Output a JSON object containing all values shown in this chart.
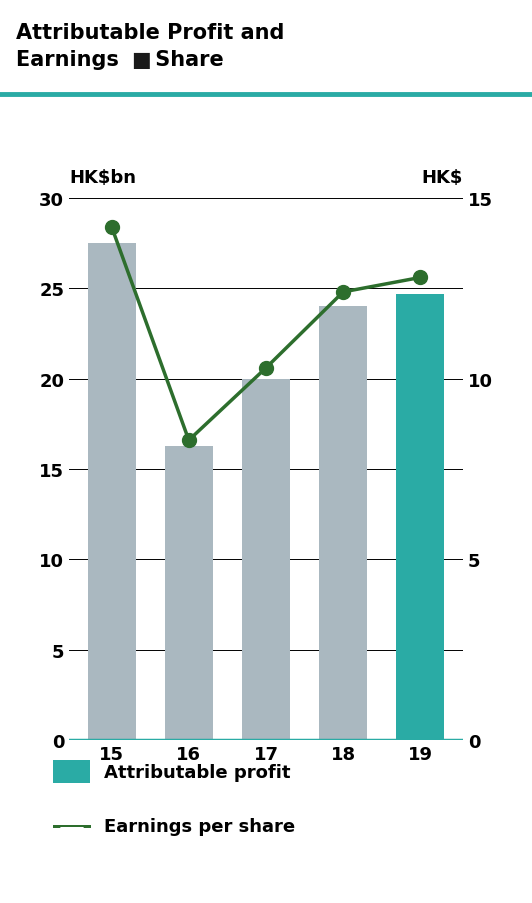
{
  "title_line1": "Attributable Profit and",
  "title_line2_part1": "Earnings ",
  "title_line2_square": "■",
  "title_line2_part2": " Share",
  "teal_color": "#2aaba5",
  "square_color": "#1a1a1a",
  "categories": [
    "15",
    "16",
    "17",
    "18",
    "19"
  ],
  "bar_values": [
    27.5,
    16.3,
    20.0,
    24.0,
    24.7
  ],
  "bar_colors": [
    "#aab8c0",
    "#aab8c0",
    "#aab8c0",
    "#aab8c0",
    "#2aaba5"
  ],
  "eps_values": [
    14.2,
    8.3,
    10.3,
    12.4,
    12.8
  ],
  "eps_color": "#2d6e2d",
  "left_ylim": [
    0,
    30
  ],
  "right_ylim": [
    0,
    15
  ],
  "left_yticks": [
    0,
    5,
    10,
    15,
    20,
    25,
    30
  ],
  "right_yticks": [
    0,
    5,
    10,
    15
  ],
  "left_ylabel": "HK$bn",
  "right_ylabel": "HK$",
  "bar_width": 0.62,
  "background_color": "#ffffff",
  "legend_labels": [
    "Attributable profit",
    "Earnings per share"
  ],
  "title_fontsize": 15,
  "tick_fontsize": 13,
  "ylabel_fontsize": 13
}
